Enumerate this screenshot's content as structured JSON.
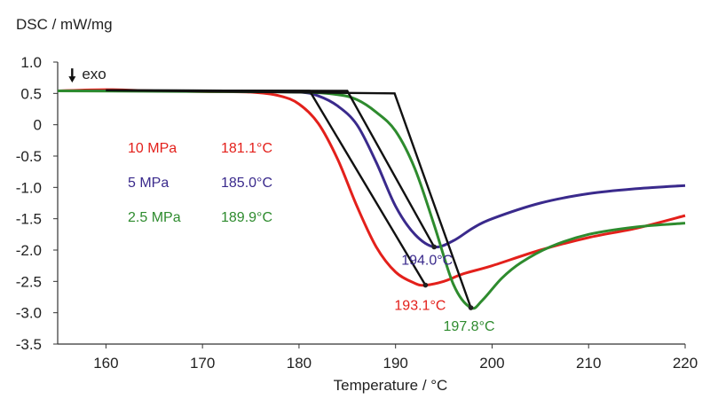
{
  "chart_data": {
    "type": "line",
    "ylabel": "DSC / mW/mg",
    "xlabel": "Temperature / °C",
    "xlim": [
      155,
      220
    ],
    "ylim": [
      -3.5,
      1.0
    ],
    "x_ticks": [
      160,
      170,
      180,
      190,
      200,
      210,
      220
    ],
    "y_ticks": [
      {
        "value": 1.0,
        "label": "1.0"
      },
      {
        "value": 0.5,
        "label": "0.5"
      },
      {
        "value": 0,
        "label": "0"
      },
      {
        "value": -0.5,
        "label": "-0.5"
      },
      {
        "value": -1.0,
        "label": "-1.0"
      },
      {
        "value": -1.5,
        "label": "-1.5"
      },
      {
        "value": -2.0,
        "label": "-2.0"
      },
      {
        "value": -2.5,
        "label": "-2.5"
      },
      {
        "value": -3.0,
        "label": "-3.0"
      },
      {
        "value": -3.5,
        "label": "-3.5"
      }
    ],
    "grid": false,
    "exo_marker": {
      "label": "exo",
      "x": 156.5,
      "y": 0.8
    },
    "series": [
      {
        "name": "10 MPa",
        "color": "#e3201b",
        "onset": "181.1°C",
        "peak_label": "193.1°C",
        "peak": [
          193.1,
          -2.56
        ],
        "points": [
          [
            155,
            0.54
          ],
          [
            160,
            0.56
          ],
          [
            165,
            0.54
          ],
          [
            170,
            0.53
          ],
          [
            175,
            0.52
          ],
          [
            178,
            0.46
          ],
          [
            180,
            0.33
          ],
          [
            182,
            0.02
          ],
          [
            184,
            -0.55
          ],
          [
            186,
            -1.3
          ],
          [
            188,
            -1.95
          ],
          [
            190,
            -2.35
          ],
          [
            192,
            -2.53
          ],
          [
            193.1,
            -2.56
          ],
          [
            195,
            -2.5
          ],
          [
            197,
            -2.38
          ],
          [
            200,
            -2.25
          ],
          [
            205,
            -2.0
          ],
          [
            210,
            -1.8
          ],
          [
            215,
            -1.65
          ],
          [
            220,
            -1.45
          ]
        ]
      },
      {
        "name": "5 MPa",
        "color": "#3a2a8c",
        "onset": "185.0°C",
        "peak_label": "194.0°C",
        "peak": [
          194.0,
          -1.95
        ],
        "points": [
          [
            155,
            0.54
          ],
          [
            165,
            0.54
          ],
          [
            175,
            0.53
          ],
          [
            180,
            0.52
          ],
          [
            182,
            0.46
          ],
          [
            184,
            0.3
          ],
          [
            186,
            0.0
          ],
          [
            188,
            -0.6
          ],
          [
            190,
            -1.3
          ],
          [
            192,
            -1.75
          ],
          [
            194,
            -1.95
          ],
          [
            196,
            -1.85
          ],
          [
            198,
            -1.65
          ],
          [
            200,
            -1.5
          ],
          [
            205,
            -1.25
          ],
          [
            210,
            -1.1
          ],
          [
            215,
            -1.02
          ],
          [
            220,
            -0.97
          ]
        ]
      },
      {
        "name": "2.5 MPa",
        "color": "#2e8b2e",
        "onset": "189.9°C",
        "peak_label": "197.8°C",
        "peak": [
          197.8,
          -2.92
        ],
        "points": [
          [
            155,
            0.54
          ],
          [
            170,
            0.53
          ],
          [
            180,
            0.52
          ],
          [
            184,
            0.48
          ],
          [
            186,
            0.4
          ],
          [
            188,
            0.2
          ],
          [
            190,
            -0.1
          ],
          [
            192,
            -0.7
          ],
          [
            194,
            -1.6
          ],
          [
            196,
            -2.55
          ],
          [
            197.8,
            -2.92
          ],
          [
            199,
            -2.8
          ],
          [
            201,
            -2.45
          ],
          [
            203,
            -2.2
          ],
          [
            206,
            -1.95
          ],
          [
            210,
            -1.75
          ],
          [
            215,
            -1.63
          ],
          [
            220,
            -1.57
          ]
        ]
      }
    ],
    "tangent_lines": [
      {
        "series": "10 MPa",
        "color": "#111111",
        "points": [
          [
            160,
            0.55
          ],
          [
            181.1,
            0.54
          ],
          [
            193.1,
            -2.56
          ]
        ]
      },
      {
        "series": "5 MPa",
        "color": "#111111",
        "points": [
          [
            160,
            0.55
          ],
          [
            185.0,
            0.54
          ],
          [
            194.0,
            -1.95
          ]
        ]
      },
      {
        "series": "2.5 MPa",
        "color": "#111111",
        "points": [
          [
            160,
            0.55
          ],
          [
            189.9,
            0.5
          ],
          [
            197.8,
            -2.92
          ]
        ]
      }
    ]
  }
}
